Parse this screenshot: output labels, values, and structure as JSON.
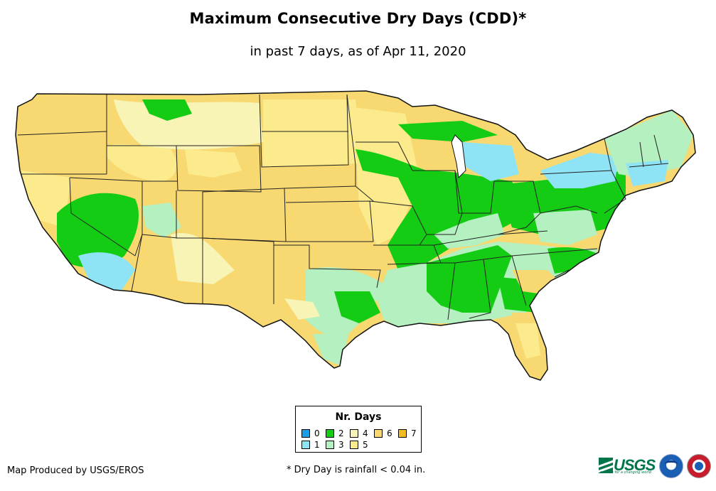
{
  "title": "Maximum Consecutive Dry Days (CDD)*",
  "subtitle": "in past 7 days, as of Apr 11, 2020",
  "legend": {
    "title": "Nr. Days",
    "items": [
      {
        "label": "0",
        "color": "#1a9ee6"
      },
      {
        "label": "1",
        "color": "#8ee3f5"
      },
      {
        "label": "2",
        "color": "#13cc13"
      },
      {
        "label": "3",
        "color": "#b4f0c0"
      },
      {
        "label": "4",
        "color": "#f8f4b6"
      },
      {
        "label": "5",
        "color": "#fbeb8c"
      },
      {
        "label": "6",
        "color": "#f8d870"
      },
      {
        "label": "7",
        "color": "#f3bc20"
      }
    ]
  },
  "credit": "Map Produced by USGS/EROS",
  "footnote": "* Dry Day is rainfall < 0.04 in.",
  "logos": {
    "usgs": "USGS",
    "usgs_tagline": "science for a changing world",
    "noaa": "noaa-logo",
    "nws": "national-weather-service-logo"
  },
  "map": {
    "region": "Contiguous United States",
    "dominant_values": {
      "west_and_plains": "6",
      "midwest_mississippi_valley": "2",
      "southeast": "3",
      "southern_california_and_great_lakes_ne": "1",
      "new_england": "3"
    }
  }
}
